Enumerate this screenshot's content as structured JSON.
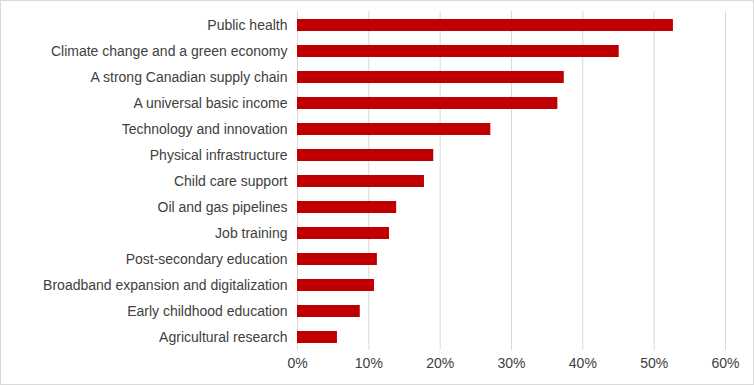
{
  "chart_data": {
    "type": "bar",
    "orientation": "horizontal",
    "categories": [
      "Public health",
      "Climate change and a green economy",
      "A strong Canadian supply chain",
      "A universal basic income",
      "Technology and innovation",
      "Physical infrastructure",
      "Child care support",
      "Oil and gas pipelines",
      "Job training",
      "Post-secondary education",
      "Broadband expansion and digitalization",
      "Early childhood education",
      "Agricultural research"
    ],
    "values": [
      52.7,
      45.1,
      37.4,
      36.5,
      27.1,
      19.1,
      17.8,
      13.9,
      12.9,
      11.2,
      10.8,
      8.8,
      5.6
    ],
    "color": "#c00000",
    "xlim": [
      0,
      60
    ],
    "xticks": [
      {
        "value": 0,
        "label": "0%"
      },
      {
        "value": 10,
        "label": "10%"
      },
      {
        "value": 20,
        "label": "20%"
      },
      {
        "value": 30,
        "label": "30%"
      },
      {
        "value": 40,
        "label": "40%"
      },
      {
        "value": 50,
        "label": "50%"
      },
      {
        "value": 60,
        "label": "60%"
      }
    ],
    "grid": true
  }
}
